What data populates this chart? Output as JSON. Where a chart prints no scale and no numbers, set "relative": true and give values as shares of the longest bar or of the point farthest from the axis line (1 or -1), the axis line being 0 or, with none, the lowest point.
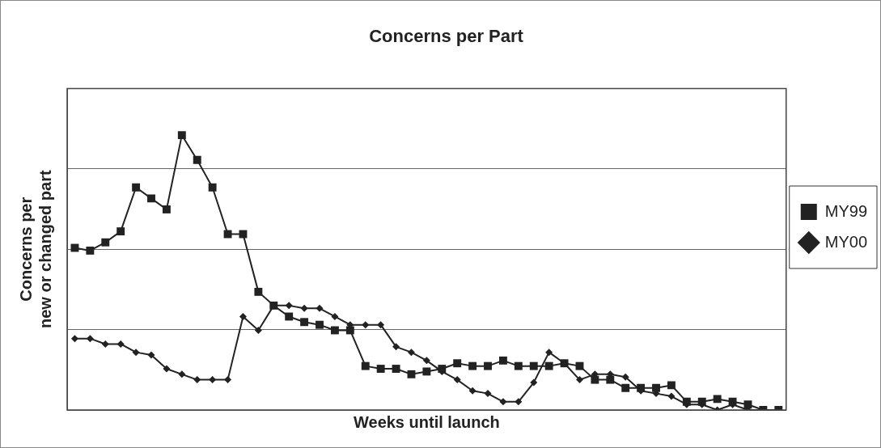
{
  "chart_data": {
    "type": "line",
    "title": "Concerns per Part",
    "xlabel": "Weeks until launch",
    "ylabel": "Concerns per\nnew or changed part",
    "relative": true,
    "grid": "y",
    "legend": "right",
    "line_style": "solid",
    "categories": [
      null,
      null,
      null,
      null,
      null,
      null,
      null,
      null,
      null,
      null,
      null,
      null,
      null,
      null,
      null,
      null,
      null,
      null,
      null,
      null,
      null,
      null,
      null,
      null,
      null,
      null,
      null,
      null,
      null,
      null,
      null,
      null,
      null,
      null,
      null,
      null,
      null,
      null,
      null,
      null,
      null,
      null,
      null,
      null,
      null,
      null,
      null
    ],
    "series": [
      {
        "name": "MY99",
        "color": "#222222",
        "marker": "square",
        "values": [
          0.59,
          0.58,
          0.61,
          0.65,
          0.81,
          0.77,
          0.73,
          1,
          0.91,
          0.81,
          0.64,
          0.64,
          0.43,
          0.38,
          0.34,
          0.32,
          0.31,
          0.29,
          0.29,
          0.16,
          0.15,
          0.15,
          0.13,
          0.14,
          0.15,
          0.17,
          0.16,
          0.16,
          0.18,
          0.16,
          0.16,
          0.16,
          0.17,
          0.16,
          0.11,
          0.11,
          0.08,
          0.08,
          0.08,
          0.09,
          0.03,
          0.03,
          0.04,
          0.03,
          0.02,
          0,
          0
        ]
      },
      {
        "name": "MY00",
        "color": "#222222",
        "marker": "diamond",
        "values": [
          0.26,
          0.26,
          0.24,
          0.24,
          0.21,
          0.2,
          0.15,
          0.13,
          0.11,
          0.11,
          0.11,
          0.34,
          0.29,
          0.38,
          0.38,
          0.37,
          0.37,
          0.34,
          0.31,
          0.31,
          0.31,
          0.23,
          0.21,
          0.18,
          0.14,
          0.11,
          0.07,
          0.06,
          0.03,
          0.03,
          0.1,
          0.21,
          0.17,
          0.11,
          0.13,
          0.13,
          0.12,
          0.07,
          0.06,
          0.05,
          0.02,
          0.02,
          0,
          0.02,
          0,
          0,
          0
        ]
      }
    ]
  }
}
